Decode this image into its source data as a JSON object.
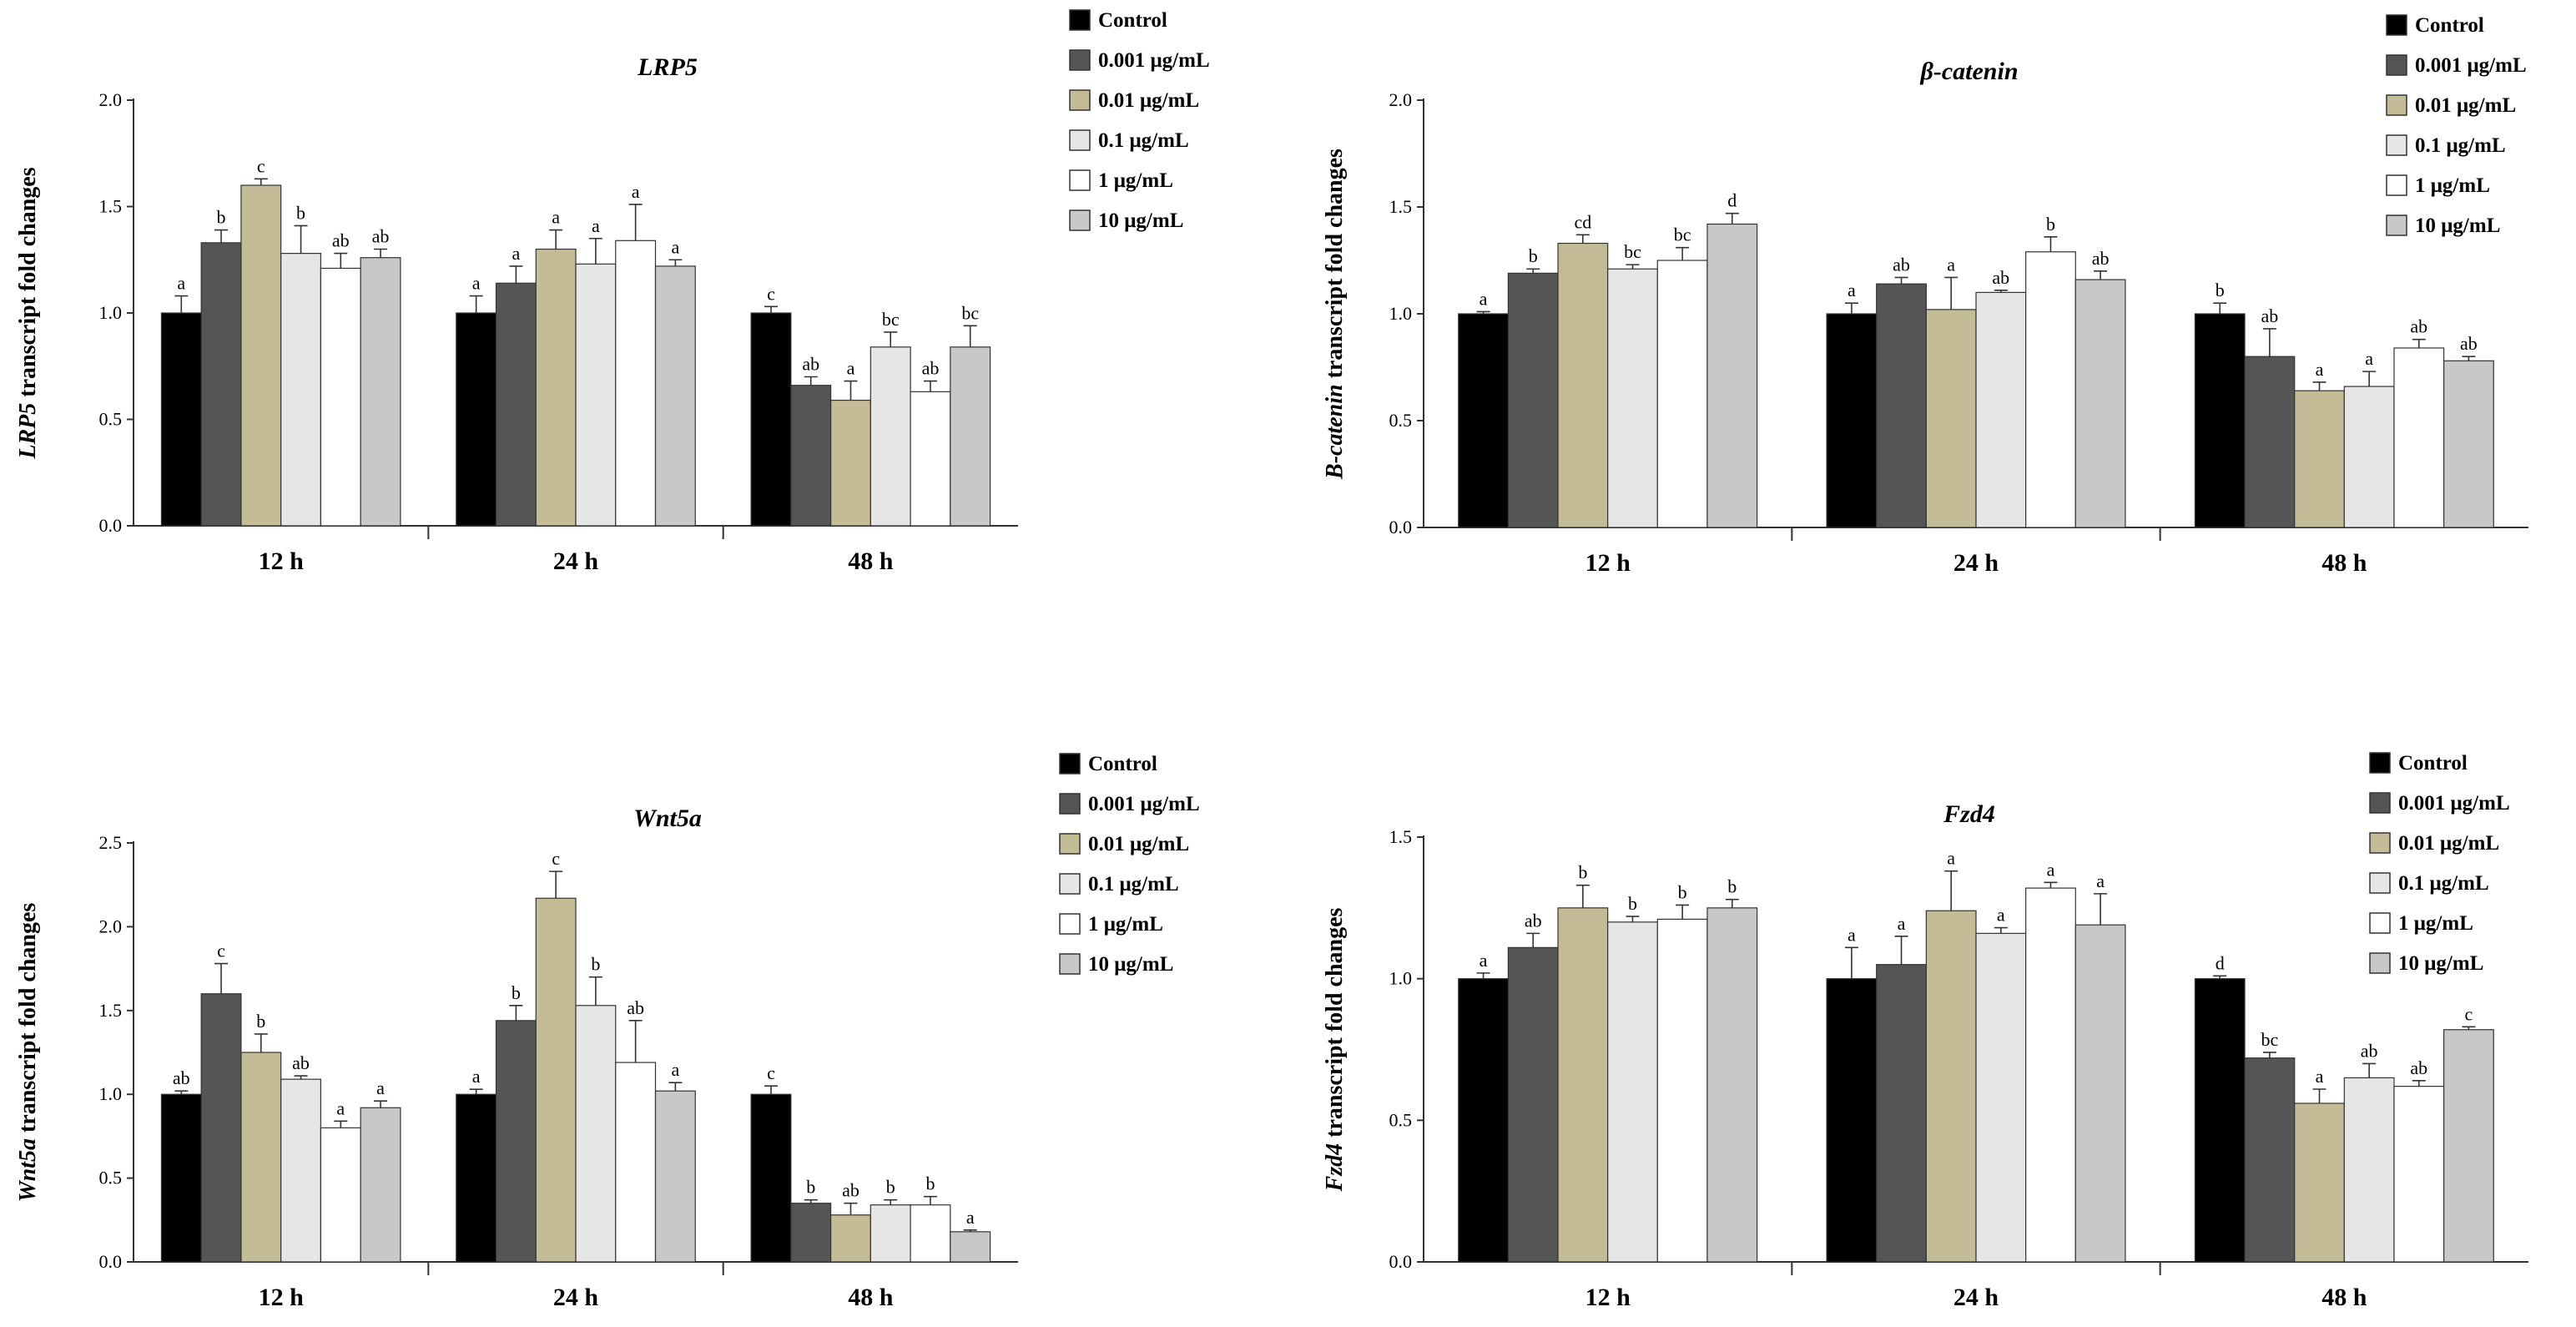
{
  "colors": {
    "series": [
      "#000000",
      "#555555",
      "#c4bc96",
      "#e6e6e6",
      "#ffffff",
      "#c8c8c8"
    ],
    "axis": "#333333"
  },
  "legend_labels": [
    "Control",
    "0.001 μg/mL",
    "0.01 μg/mL",
    "0.1 μg/mL",
    "1 μg/mL",
    "10 μg/mL"
  ],
  "chart_data": [
    {
      "type": "bar",
      "title": "LRP5",
      "ylabel_italic": "LRP5",
      "ylabel_rest": " transcript fold changes",
      "categories": [
        "12 h",
        "24 h",
        "48 h"
      ],
      "ylim": [
        0,
        2.0
      ],
      "yticks": [
        "0.0",
        "0.5",
        "1.0",
        "1.5",
        "2.0"
      ],
      "ytick_values": [
        0,
        0.5,
        1.0,
        1.5,
        2.0
      ],
      "series": [
        {
          "name": "Control",
          "values": [
            1.0,
            1.0,
            1.0
          ],
          "errors": [
            0.08,
            0.08,
            0.03
          ],
          "letters": [
            "a",
            "a",
            "c"
          ]
        },
        {
          "name": "0.001 μg/mL",
          "values": [
            1.33,
            1.14,
            0.66
          ],
          "errors": [
            0.06,
            0.08,
            0.04
          ],
          "letters": [
            "b",
            "a",
            "ab"
          ]
        },
        {
          "name": "0.01 μg/mL",
          "values": [
            1.6,
            1.3,
            0.59
          ],
          "errors": [
            0.03,
            0.09,
            0.09
          ],
          "letters": [
            "c",
            "a",
            "a"
          ]
        },
        {
          "name": "0.1 μg/mL",
          "values": [
            1.28,
            1.23,
            0.84
          ],
          "errors": [
            0.13,
            0.12,
            0.07
          ],
          "letters": [
            "b",
            "a",
            "bc"
          ]
        },
        {
          "name": "1 μg/mL",
          "values": [
            1.21,
            1.34,
            0.63
          ],
          "errors": [
            0.07,
            0.17,
            0.05
          ],
          "letters": [
            "ab",
            "a",
            "ab"
          ]
        },
        {
          "name": "10 μg/mL",
          "values": [
            1.26,
            1.22,
            0.84
          ],
          "errors": [
            0.04,
            0.03,
            0.1
          ],
          "letters": [
            "ab",
            "a",
            "bc"
          ]
        }
      ]
    },
    {
      "type": "bar",
      "title": "β-catenin",
      "ylabel_italic": "Β-catenin",
      "ylabel_rest": " transcript fold changes",
      "categories": [
        "12 h",
        "24 h",
        "48 h"
      ],
      "ylim": [
        0,
        2.0
      ],
      "yticks": [
        "0.0",
        "0.5",
        "1.0",
        "1.5",
        "2.0"
      ],
      "ytick_values": [
        0,
        0.5,
        1.0,
        1.5,
        2.0
      ],
      "series": [
        {
          "name": "Control",
          "values": [
            1.0,
            1.0,
            1.0
          ],
          "errors": [
            0.01,
            0.05,
            0.05
          ],
          "letters": [
            "a",
            "a",
            "b"
          ]
        },
        {
          "name": "0.001 μg/mL",
          "values": [
            1.19,
            1.14,
            0.8
          ],
          "errors": [
            0.02,
            0.03,
            0.13
          ],
          "letters": [
            "b",
            "ab",
            "ab"
          ]
        },
        {
          "name": "0.01 μg/mL",
          "values": [
            1.33,
            1.02,
            0.64
          ],
          "errors": [
            0.04,
            0.15,
            0.04
          ],
          "letters": [
            "cd",
            "a",
            "a"
          ]
        },
        {
          "name": "0.1 μg/mL",
          "values": [
            1.21,
            1.1,
            0.66
          ],
          "errors": [
            0.02,
            0.01,
            0.07
          ],
          "letters": [
            "bc",
            "ab",
            "a"
          ]
        },
        {
          "name": "1 μg/mL",
          "values": [
            1.25,
            1.29,
            0.84
          ],
          "errors": [
            0.06,
            0.07,
            0.04
          ],
          "letters": [
            "bc",
            "b",
            "ab"
          ]
        },
        {
          "name": "10 μg/mL",
          "values": [
            1.42,
            1.16,
            0.78
          ],
          "errors": [
            0.05,
            0.04,
            0.02
          ],
          "letters": [
            "d",
            "ab",
            "ab"
          ]
        }
      ]
    },
    {
      "type": "bar",
      "title": "Wnt5a",
      "ylabel_italic": "Wnt5a",
      "ylabel_rest": " transcript fold changes",
      "categories": [
        "12 h",
        "24 h",
        "48 h"
      ],
      "ylim": [
        0,
        2.5
      ],
      "yticks": [
        "0.0",
        "0.5",
        "1.0",
        "1.5",
        "2.0",
        "2.5"
      ],
      "ytick_values": [
        0,
        0.5,
        1.0,
        1.5,
        2.0,
        2.5
      ],
      "series": [
        {
          "name": "Control",
          "values": [
            1.0,
            1.0,
            1.0
          ],
          "errors": [
            0.02,
            0.03,
            0.05
          ],
          "letters": [
            "ab",
            "a",
            "c"
          ]
        },
        {
          "name": "0.001 μg/mL",
          "values": [
            1.6,
            1.44,
            0.35
          ],
          "errors": [
            0.18,
            0.09,
            0.02
          ],
          "letters": [
            "c",
            "b",
            "b"
          ]
        },
        {
          "name": "0.01 μg/mL",
          "values": [
            1.25,
            2.17,
            0.28
          ],
          "errors": [
            0.11,
            0.16,
            0.07
          ],
          "letters": [
            "b",
            "c",
            "ab"
          ]
        },
        {
          "name": "0.1 μg/mL",
          "values": [
            1.09,
            1.53,
            0.34
          ],
          "errors": [
            0.02,
            0.17,
            0.03
          ],
          "letters": [
            "ab",
            "b",
            "b"
          ]
        },
        {
          "name": "1 μg/mL",
          "values": [
            0.8,
            1.19,
            0.34
          ],
          "errors": [
            0.04,
            0.25,
            0.05
          ],
          "letters": [
            "a",
            "ab",
            "b"
          ]
        },
        {
          "name": "10 μg/mL",
          "values": [
            0.92,
            1.02,
            0.18
          ],
          "errors": [
            0.04,
            0.05,
            0.01
          ],
          "letters": [
            "a",
            "a",
            "a"
          ]
        }
      ]
    },
    {
      "type": "bar",
      "title": "Fzd4",
      "ylabel_italic": "Fzd4",
      "ylabel_rest": " transcript fold changes",
      "categories": [
        "12 h",
        "24 h",
        "48 h"
      ],
      "ylim": [
        0,
        1.5
      ],
      "yticks": [
        "0.0",
        "0.5",
        "1.0",
        "1.5"
      ],
      "ytick_values": [
        0,
        0.5,
        1.0,
        1.5
      ],
      "series": [
        {
          "name": "Control",
          "values": [
            1.0,
            1.0,
            1.0
          ],
          "errors": [
            0.02,
            0.11,
            0.01
          ],
          "letters": [
            "a",
            "a",
            "d"
          ]
        },
        {
          "name": "0.001 μg/mL",
          "values": [
            1.11,
            1.05,
            0.72
          ],
          "errors": [
            0.05,
            0.1,
            0.02
          ],
          "letters": [
            "ab",
            "a",
            "bc"
          ]
        },
        {
          "name": "0.01 μg/mL",
          "values": [
            1.25,
            1.24,
            0.56
          ],
          "errors": [
            0.08,
            0.14,
            0.05
          ],
          "letters": [
            "b",
            "a",
            "a"
          ]
        },
        {
          "name": "0.1 μg/mL",
          "values": [
            1.2,
            1.16,
            0.65
          ],
          "errors": [
            0.02,
            0.02,
            0.05
          ],
          "letters": [
            "b",
            "a",
            "ab"
          ]
        },
        {
          "name": "1 μg/mL",
          "values": [
            1.21,
            1.32,
            0.62
          ],
          "errors": [
            0.05,
            0.02,
            0.02
          ],
          "letters": [
            "b",
            "a",
            "ab"
          ]
        },
        {
          "name": "10 μg/mL",
          "values": [
            1.25,
            1.19,
            0.82
          ],
          "errors": [
            0.03,
            0.11,
            0.01
          ],
          "letters": [
            "b",
            "a",
            "c"
          ]
        }
      ]
    }
  ]
}
